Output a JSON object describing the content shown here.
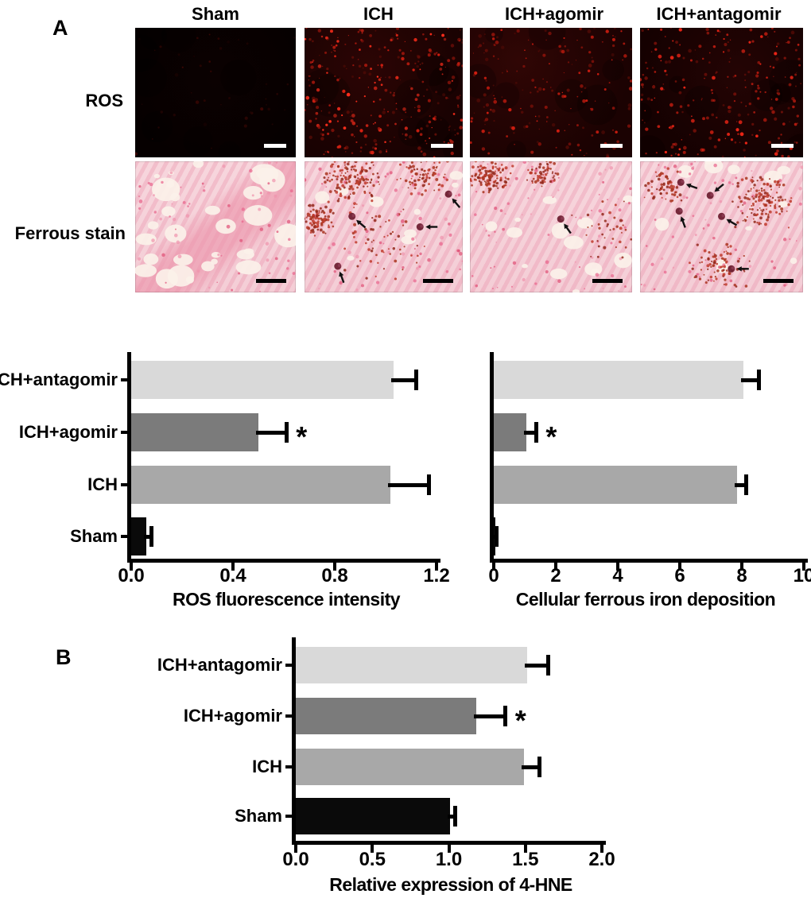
{
  "panels": {
    "a_label": "A",
    "b_label": "B"
  },
  "panel_a": {
    "column_headers": [
      "Sham",
      "ICH",
      "ICH+agomir",
      "ICH+antagomir"
    ],
    "row_labels": [
      "ROS",
      "Ferrous stain"
    ]
  },
  "micrographs": {
    "rows": [
      {
        "label": "ROS",
        "type": "fluorescence",
        "scale_bar_color": "#ffffff",
        "tiles": [
          {
            "condition": "Sham",
            "signal": "minimal"
          },
          {
            "condition": "ICH",
            "signal": "high"
          },
          {
            "condition": "ICH+agomir",
            "signal": "moderate"
          },
          {
            "condition": "ICH+antagomir",
            "signal": "high"
          }
        ]
      },
      {
        "label": "Ferrous stain",
        "type": "histology",
        "scale_bar_color": "#000000",
        "tiles": [
          {
            "condition": "Sham",
            "arrow_count": 0
          },
          {
            "condition": "ICH",
            "arrow_count": 4
          },
          {
            "condition": "ICH+agomir",
            "arrow_count": 1
          },
          {
            "condition": "ICH+antagomir",
            "arrow_count": 5
          }
        ]
      }
    ]
  },
  "colors": {
    "light_gray": "#d9d9d9",
    "medium_gray": "#a8a8a8",
    "dark_gray": "#7b7b7b",
    "black": "#0a0a0a",
    "axis": "#000000",
    "ros_signal_red": "#d92012",
    "ferrous_pink": "#f6d2d9",
    "ferrous_deposit": "#6f2033"
  },
  "chart_data": [
    {
      "type": "bar",
      "orientation": "horizontal",
      "xlabel": "ROS fluorescence intensity",
      "categories": [
        "ICH+antagomir",
        "ICH+agomir",
        "ICH",
        "Sham"
      ],
      "category_labels_shown": true,
      "values": [
        1.03,
        0.5,
        1.02,
        0.06
      ],
      "errors": [
        0.09,
        0.11,
        0.15,
        0.02
      ],
      "significance": [
        null,
        "*",
        null,
        null
      ],
      "bar_colors": [
        "light_gray",
        "dark_gray",
        "medium_gray",
        "black"
      ],
      "xticks": [
        0.0,
        0.4,
        0.8,
        1.2
      ],
      "xtick_labels": [
        "0.0",
        "0.4",
        "0.8",
        "1.2"
      ],
      "xlim": [
        0,
        1.2
      ],
      "grid": false,
      "legend": false
    },
    {
      "type": "bar",
      "orientation": "horizontal",
      "xlabel": "Cellular ferrous iron deposition",
      "categories": [
        "ICH+antagomir",
        "ICH+agomir",
        "ICH",
        "Sham"
      ],
      "category_labels_shown": false,
      "values": [
        8.05,
        1.05,
        7.85,
        0.05
      ],
      "errors": [
        0.5,
        0.32,
        0.28,
        0.05
      ],
      "significance": [
        null,
        "*",
        null,
        null
      ],
      "bar_colors": [
        "light_gray",
        "dark_gray",
        "medium_gray",
        "black"
      ],
      "xticks": [
        0,
        2,
        4,
        6,
        8,
        10
      ],
      "xtick_labels": [
        "0",
        "2",
        "4",
        "6",
        "8",
        "10"
      ],
      "xlim": [
        0,
        10
      ],
      "grid": false,
      "legend": false
    },
    {
      "type": "bar",
      "orientation": "horizontal",
      "xlabel": "Relative expression of 4-HNE",
      "categories": [
        "ICH+antagomir",
        "ICH+agomir",
        "ICH",
        "Sham"
      ],
      "category_labels_shown": true,
      "values": [
        1.51,
        1.18,
        1.49,
        1.01
      ],
      "errors": [
        0.14,
        0.19,
        0.1,
        0.03
      ],
      "significance": [
        null,
        "*",
        null,
        null
      ],
      "bar_colors": [
        "light_gray",
        "dark_gray",
        "medium_gray",
        "black"
      ],
      "xticks": [
        0.0,
        0.5,
        1.0,
        1.5,
        2.0
      ],
      "xtick_labels": [
        "0.0",
        "0.5",
        "1.0",
        "1.5",
        "2.0"
      ],
      "xlim": [
        0,
        2.0
      ],
      "grid": false,
      "legend": false
    }
  ]
}
